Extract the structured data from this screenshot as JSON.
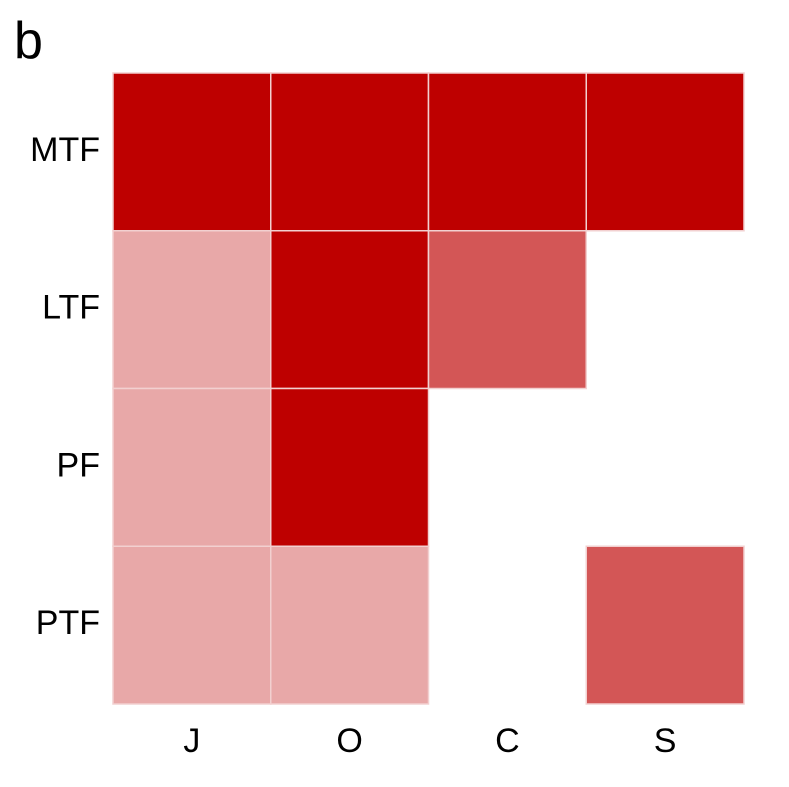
{
  "panel_label": "b",
  "chart_data": {
    "type": "heatmap",
    "rows": [
      "MTF",
      "LTF",
      "PF",
      "PTF"
    ],
    "columns": [
      "J",
      "O",
      "C",
      "S"
    ],
    "values": [
      [
        3,
        3,
        3,
        3
      ],
      [
        1,
        3,
        2,
        null
      ],
      [
        1,
        3,
        null,
        null
      ],
      [
        1,
        1,
        null,
        2
      ]
    ],
    "legend": null,
    "grid": false,
    "colors": {
      "1": "#E8A8A8",
      "2": "#D35656",
      "3": "#BE0000",
      "cell_border": "#F2D0D0"
    }
  }
}
